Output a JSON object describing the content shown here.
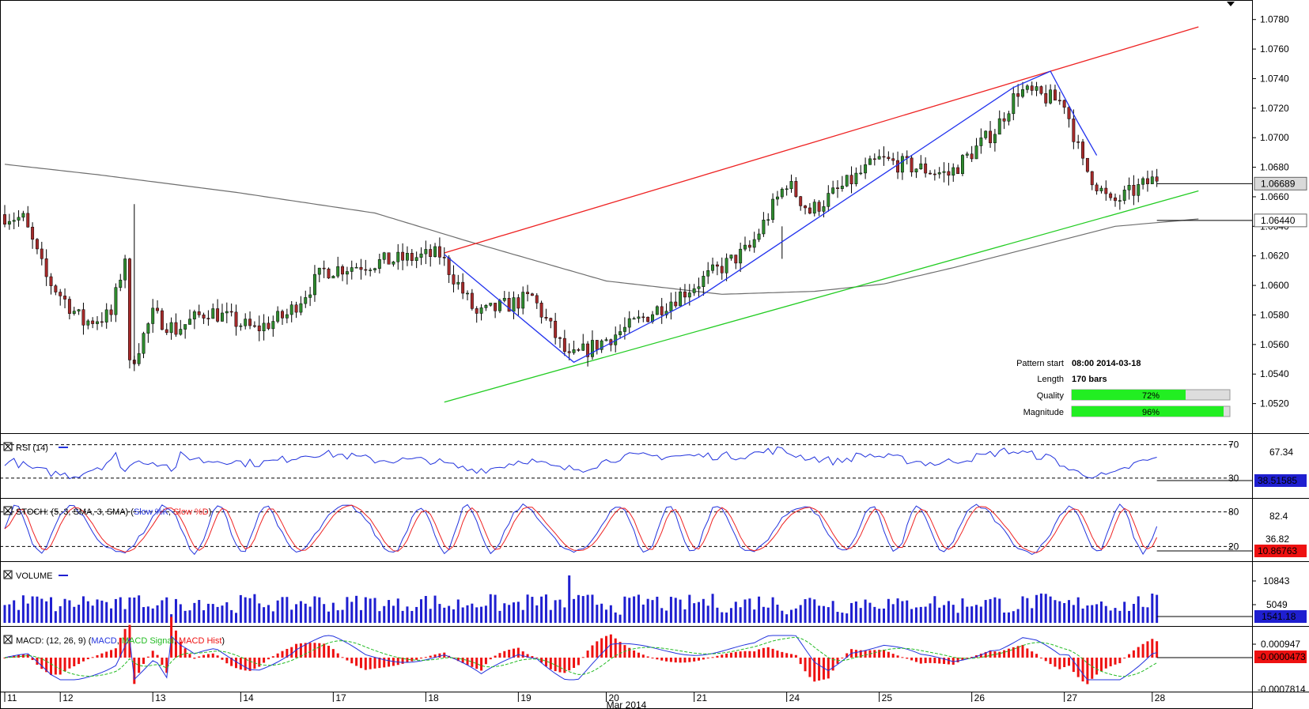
{
  "chart_data": {
    "type": "candlestick",
    "price": {
      "ylim": [
        1.05,
        1.079
      ],
      "ticks": [
        "1.0780",
        "1.0760",
        "1.0740",
        "1.0720",
        "1.0700",
        "1.0680",
        "1.0660",
        "1.0640",
        "1.0620",
        "1.0600",
        "1.0580",
        "1.0560",
        "1.0540",
        "1.0520"
      ],
      "last_price_label": "1.06689",
      "ma_price_label": "1.06440",
      "last_price": 1.06689,
      "ma_value": 1.0644,
      "bar_count": 250,
      "waypoints": [
        [
          0,
          1.0648
        ],
        [
          5,
          1.0645
        ],
        [
          10,
          1.0605
        ],
        [
          18,
          1.0575
        ],
        [
          24,
          1.058
        ],
        [
          27,
          1.062
        ],
        [
          28,
          1.0545
        ],
        [
          33,
          1.058
        ],
        [
          38,
          1.057
        ],
        [
          45,
          1.0583
        ],
        [
          55,
          1.057
        ],
        [
          62,
          1.058
        ],
        [
          70,
          1.061
        ],
        [
          80,
          1.0615
        ],
        [
          95,
          1.0621
        ],
        [
          103,
          1.058
        ],
        [
          115,
          1.0592
        ],
        [
          123,
          1.055
        ],
        [
          136,
          1.0572
        ],
        [
          150,
          1.06
        ],
        [
          162,
          1.0625
        ],
        [
          170,
          1.067
        ],
        [
          175,
          1.065
        ],
        [
          190,
          1.0685
        ],
        [
          205,
          1.0675
        ],
        [
          215,
          1.0705
        ],
        [
          220,
          1.0732
        ],
        [
          230,
          1.0724
        ],
        [
          234,
          1.0682
        ],
        [
          240,
          1.0655
        ],
        [
          250,
          1.0673
        ],
        [
          255,
          1.0668
        ],
        [
          258,
          1.0668
        ]
      ],
      "moving_average": [
        [
          0,
          1.0682
        ],
        [
          20,
          1.0675
        ],
        [
          50,
          1.0663
        ],
        [
          80,
          1.0649
        ],
        [
          100,
          1.063
        ],
        [
          130,
          1.0603
        ],
        [
          155,
          1.0594
        ],
        [
          175,
          1.0596
        ],
        [
          190,
          1.0601
        ],
        [
          205,
          1.0612
        ],
        [
          225,
          1.0628
        ],
        [
          240,
          1.064
        ],
        [
          258,
          1.0645
        ]
      ],
      "channel_upper": [
        [
          95,
          1.0622
        ],
        [
          258,
          1.0775
        ]
      ],
      "channel_lower": [
        [
          95,
          1.0521
        ],
        [
          258,
          1.0664
        ]
      ],
      "zigzag": [
        [
          95,
          1.0621
        ],
        [
          123,
          1.0548
        ],
        [
          150,
          1.0592
        ],
        [
          218,
          1.0734
        ],
        [
          226,
          1.0745
        ],
        [
          232,
          1.071
        ],
        [
          236,
          1.0688
        ]
      ],
      "x_labels": [
        "11",
        "12",
        "13",
        "14",
        "17",
        "18",
        "19",
        "20",
        "21",
        "24",
        "25",
        "26",
        "27",
        "28"
      ],
      "x_label_bars": [
        0,
        12,
        32,
        51,
        71,
        91,
        111,
        130,
        149,
        169,
        189,
        209,
        229,
        248
      ],
      "month_label": "Mar 2014"
    },
    "pattern": {
      "start_label": "Pattern start",
      "start_value": "08:00 2014-03-18",
      "length_label": "Length",
      "length_value": "170 bars",
      "quality_label": "Quality",
      "quality_value": "72%",
      "quality_pct": 72,
      "magnitude_label": "Magnitude",
      "magnitude_value": "96%",
      "magnitude_pct": 96
    },
    "rsi": {
      "title": "RSI (14)",
      "level_high": "70",
      "level_low": "30",
      "current_label": "67.34",
      "value_label": "38.51585",
      "ylim": [
        10,
        80
      ]
    },
    "stoch": {
      "title_prefix": "STOCH: (5, 3, SMA, 3, SMA) (",
      "k_name": "Slow %K",
      "d_name": "Slow %D",
      "level_high": "80",
      "level_low": "20",
      "mid_label1": "82.4",
      "mid_label2": "36.82",
      "value_label": "10.86763"
    },
    "volume": {
      "title": "VOLUME",
      "tick_high": "10843",
      "tick_mid": "5049",
      "value_label": "1541.18"
    },
    "macd": {
      "title_prefix": "MACD: (12, 26, 9) (",
      "macd_name": "MACD",
      "signal_name": "MACD Signal",
      "hist_name": "MACD Hist",
      "tick_high": "0.000947",
      "value_label": "-0.0000473",
      "tick_low": "-0.0007814"
    }
  },
  "colors": {
    "bull": "#2e8b2e",
    "bear": "#a52a2a",
    "channel_upper": "#ee2222",
    "channel_lower": "#22cc22",
    "zigzag": "#2233ee",
    "ma": "#6e6e6e",
    "rsi": "#2233dd",
    "stoch_k": "#2233dd",
    "stoch_d": "#ee2222",
    "volume": "#1f1fd0",
    "macd": "#2233dd",
    "signal": "#22bb22",
    "hist": "#ee1111",
    "value_box": "#1f1fd0"
  }
}
